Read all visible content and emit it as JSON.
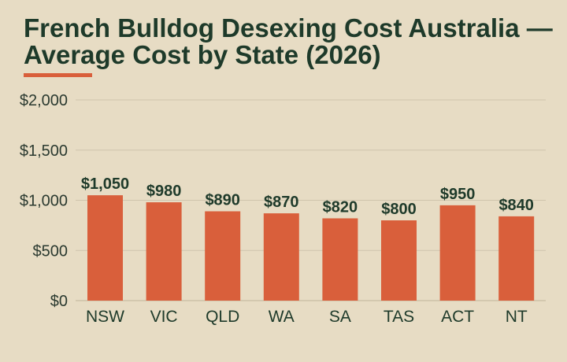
{
  "chart_data": {
    "type": "bar",
    "title": "French Bulldog Desexing Cost Australia — Average Cost by State (2026)",
    "xlabel": "",
    "ylabel": "",
    "categories": [
      "NSW",
      "VIC",
      "QLD",
      "WA",
      "SA",
      "TAS",
      "ACT",
      "NT"
    ],
    "values": [
      1050,
      980,
      890,
      870,
      820,
      800,
      950,
      840
    ],
    "value_labels": [
      "$1,050",
      "$980",
      "$890",
      "$870",
      "$820",
      "$800",
      "$950",
      "$840"
    ],
    "ylim": [
      0,
      2000
    ],
    "yticks": [
      0,
      500,
      1000,
      1500,
      2000
    ],
    "ytick_labels": [
      "$0",
      "$500",
      "$1,000",
      "$1,500",
      "$2,000"
    ],
    "grid": true,
    "legend": "none",
    "colors": {
      "bar": "#d95f3b",
      "accent": "#d95f3b",
      "background": "#e7dcc4",
      "title": "#1e3a2a",
      "grid": "#cfc4ad"
    }
  }
}
